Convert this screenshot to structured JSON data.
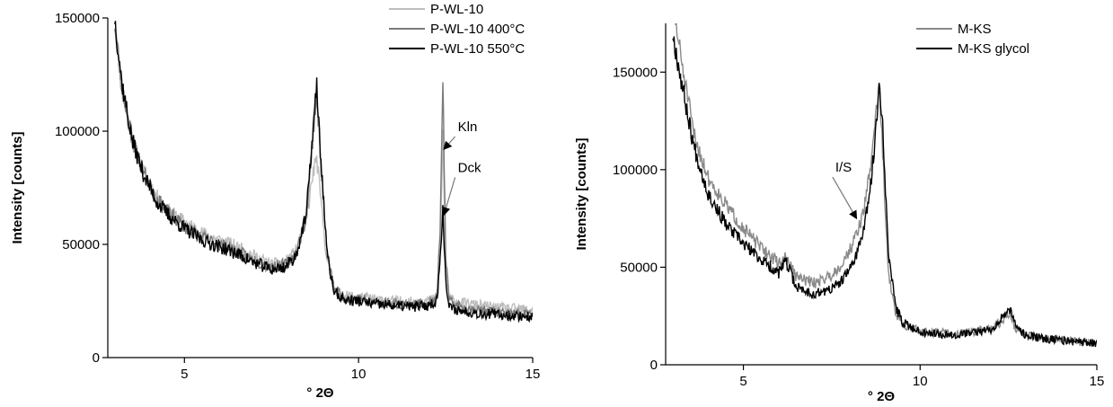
{
  "chart_data": [
    {
      "type": "line",
      "xlabel": "° 2Θ",
      "ylabel": "Intensity [counts]",
      "xlim": [
        2.8,
        15
      ],
      "ylim": [
        0,
        150000
      ],
      "xticks": [
        5,
        10,
        15
      ],
      "yticks": [
        0,
        50000,
        100000,
        150000
      ],
      "legend_position": "top-right",
      "series": [
        {
          "name": "P-WL-10",
          "color": "#bdbdbd",
          "seed": 11,
          "x": [
            3.0,
            3.2,
            3.5,
            3.8,
            4.2,
            4.6,
            5.0,
            5.5,
            6.0,
            6.5,
            7.0,
            7.5,
            7.9,
            8.2,
            8.5,
            8.7,
            8.8,
            8.9,
            9.1,
            9.3,
            9.6,
            10.0,
            10.5,
            11.0,
            11.5,
            12.0,
            12.25,
            12.35,
            12.42,
            12.5,
            12.6,
            13.0,
            13.5,
            14.0,
            14.5,
            15.0
          ],
          "y": [
            148000,
            118000,
            96000,
            83000,
            71000,
            64000,
            60000,
            55000,
            52000,
            49000,
            45000,
            41000,
            42000,
            47000,
            60000,
            82000,
            88000,
            72000,
            42000,
            30000,
            27000,
            27000,
            25500,
            25000,
            24500,
            25000,
            26000,
            45000,
            100000,
            40000,
            26000,
            24000,
            23000,
            22000,
            21500,
            21000
          ]
        },
        {
          "name": "P-WL-10 400°C",
          "color": "#7a7a7a",
          "seed": 23,
          "x": [
            3.0,
            3.2,
            3.5,
            3.8,
            4.2,
            4.6,
            5.0,
            5.5,
            6.0,
            6.5,
            7.0,
            7.5,
            7.9,
            8.2,
            8.5,
            8.7,
            8.8,
            8.9,
            9.1,
            9.3,
            9.6,
            10.0,
            10.5,
            11.0,
            11.5,
            12.0,
            12.25,
            12.35,
            12.42,
            12.5,
            12.6,
            13.0,
            13.5,
            14.0,
            14.5,
            15.0
          ],
          "y": [
            148000,
            120000,
            97000,
            83000,
            70000,
            63000,
            58000,
            53000,
            50000,
            47000,
            43000,
            40000,
            41000,
            46000,
            62000,
            100000,
            117000,
            90000,
            45000,
            30000,
            26500,
            26000,
            24500,
            24000,
            23500,
            24000,
            26000,
            60000,
            126000,
            45000,
            25000,
            22000,
            21000,
            20000,
            19500,
            19000
          ]
        },
        {
          "name": "P-WL-10 550°C",
          "color": "#000000",
          "seed": 37,
          "x": [
            3.0,
            3.2,
            3.5,
            3.8,
            4.2,
            4.6,
            5.0,
            5.5,
            6.0,
            6.5,
            7.0,
            7.5,
            7.9,
            8.2,
            8.5,
            8.7,
            8.8,
            8.9,
            9.1,
            9.3,
            9.6,
            10.0,
            10.5,
            11.0,
            11.5,
            12.0,
            12.25,
            12.35,
            12.42,
            12.5,
            12.6,
            13.0,
            13.5,
            14.0,
            14.5,
            15.0
          ],
          "y": [
            150000,
            122000,
            96000,
            82000,
            69000,
            62000,
            57000,
            52000,
            49000,
            46000,
            42000,
            39000,
            40000,
            45000,
            63000,
            102000,
            120000,
            92000,
            45000,
            29000,
            25500,
            25000,
            23500,
            23000,
            22500,
            23000,
            25000,
            45000,
            68000,
            34000,
            22000,
            20500,
            19500,
            19000,
            18500,
            18000
          ]
        }
      ],
      "annotations": [
        {
          "text": "Kln",
          "x": 12.85,
          "y": 100000,
          "target_x": 12.45,
          "target_y": 92000
        },
        {
          "text": "Dck",
          "x": 12.85,
          "y": 82000,
          "target_x": 12.45,
          "target_y": 63000
        }
      ]
    },
    {
      "type": "line",
      "xlabel": "° 2Θ",
      "ylabel": "Intensity [counts]",
      "xlim": [
        2.8,
        15
      ],
      "ylim": [
        0,
        175000
      ],
      "xticks": [
        5,
        10,
        15
      ],
      "yticks": [
        0,
        50000,
        100000,
        150000
      ],
      "legend_position": "top-right",
      "series": [
        {
          "name": "M-KS",
          "color": "#8a8a8a",
          "seed": 51,
          "x": [
            3.0,
            3.3,
            3.6,
            4.0,
            4.5,
            5.0,
            5.5,
            6.0,
            6.2,
            6.5,
            7.0,
            7.5,
            7.8,
            8.1,
            8.4,
            8.6,
            8.75,
            8.85,
            8.95,
            9.1,
            9.3,
            9.5,
            10.0,
            10.5,
            11.0,
            11.5,
            12.0,
            12.3,
            12.5,
            12.7,
            13.0,
            13.5,
            14.0,
            14.5,
            15.0
          ],
          "y": [
            185000,
            150000,
            118000,
            96000,
            82000,
            70000,
            60000,
            52000,
            55000,
            45000,
            42000,
            46000,
            52000,
            62000,
            78000,
            102000,
            130000,
            142000,
            105000,
            48000,
            26000,
            21000,
            17000,
            16500,
            16000,
            17000,
            18500,
            22000,
            26000,
            19000,
            15000,
            14000,
            13000,
            12000,
            11500
          ]
        },
        {
          "name": "M-KS glycol",
          "color": "#000000",
          "seed": 67,
          "x": [
            3.0,
            3.3,
            3.6,
            4.0,
            4.5,
            5.0,
            5.5,
            6.0,
            6.2,
            6.5,
            7.0,
            7.5,
            7.8,
            8.1,
            8.4,
            8.6,
            8.75,
            8.85,
            8.95,
            9.1,
            9.3,
            9.5,
            10.0,
            10.5,
            11.0,
            11.5,
            12.0,
            12.3,
            12.5,
            12.7,
            13.0,
            13.5,
            14.0,
            14.5,
            15.0
          ],
          "y": [
            170000,
            140000,
            112000,
            88000,
            72000,
            62000,
            54000,
            47000,
            53000,
            40000,
            36000,
            39000,
            43000,
            52000,
            68000,
            92000,
            120000,
            146000,
            120000,
            58000,
            30000,
            22000,
            17000,
            16000,
            15500,
            16500,
            18000,
            24000,
            30000,
            20000,
            15000,
            13500,
            12500,
            11500,
            11000
          ]
        }
      ],
      "annotations": [
        {
          "text": "I/S",
          "x": 7.6,
          "y": 99000,
          "target_x": 8.2,
          "target_y": 75000
        }
      ]
    }
  ]
}
